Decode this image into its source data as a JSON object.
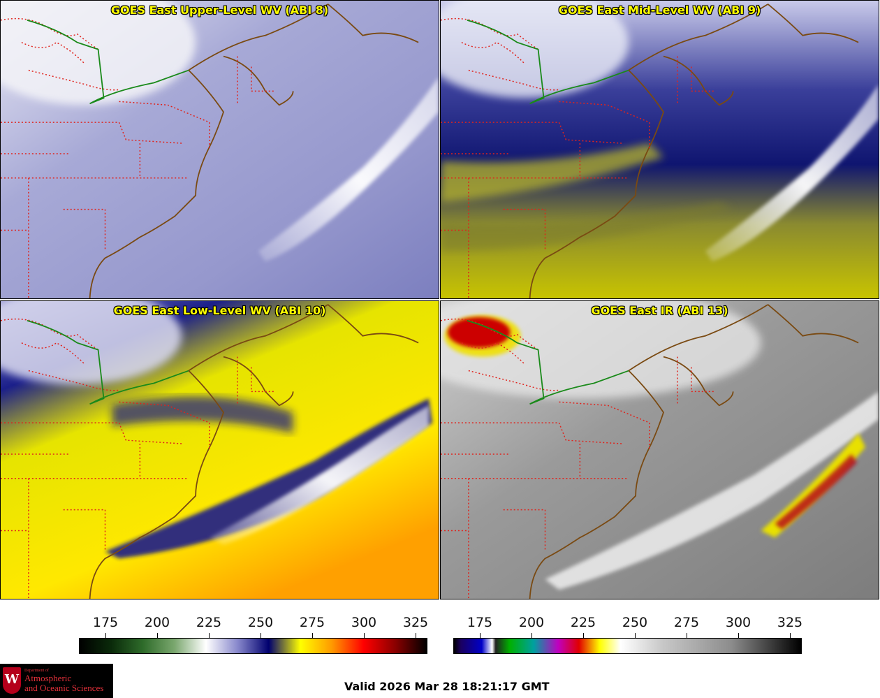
{
  "panels": [
    {
      "title": "GOES East Upper-Level WV (ABI 8)",
      "palette": "wv_upper"
    },
    {
      "title": "GOES East Mid-Level WV (ABI 9)",
      "palette": "wv_mid"
    },
    {
      "title": "GOES East Low-Level WV (ABI 10)",
      "palette": "wv_low"
    },
    {
      "title": "GOES East IR (ABI 13)",
      "palette": "ir"
    }
  ],
  "colorbars": {
    "wv": {
      "ticks": [
        "175",
        "200",
        "225",
        "250",
        "275",
        "300",
        "325"
      ],
      "stops": [
        "#000000",
        "#0a2a0a",
        "#2e6b2a",
        "#7aa76e",
        "#ffffff",
        "#8888cc",
        "#00006e",
        "#ffff00",
        "#ff9900",
        "#ff0000",
        "#8b0000",
        "#000000"
      ]
    },
    "ir": {
      "ticks": [
        "175",
        "200",
        "225",
        "250",
        "275",
        "300",
        "325"
      ]
    }
  },
  "colors": {
    "border_state": "#e0231c",
    "coastline": "#7a4a12",
    "intl_border": "#1a8a1a",
    "title_text": "#ffff00"
  },
  "logo": {
    "line1": "Department of",
    "line2": "Atmospheric",
    "line3": "and Oceanic Sciences",
    "crest": "W"
  },
  "valid_text": "Valid 2026 Mar 28 18:21:17 GMT"
}
